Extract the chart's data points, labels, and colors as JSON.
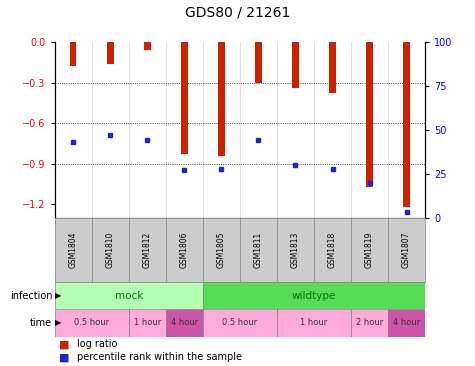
{
  "title": "GDS80 / 21261",
  "samples": [
    "GSM1804",
    "GSM1810",
    "GSM1812",
    "GSM1806",
    "GSM1805",
    "GSM1811",
    "GSM1813",
    "GSM1818",
    "GSM1819",
    "GSM1807"
  ],
  "log_ratios": [
    -0.18,
    -0.16,
    -0.06,
    -0.83,
    -0.84,
    -0.3,
    -0.34,
    -0.38,
    -1.07,
    -1.22
  ],
  "percentile_ranks": [
    43,
    47,
    44,
    27,
    28,
    44,
    30,
    28,
    20,
    3
  ],
  "ylim_min": -1.3,
  "ylim_max": 0.0,
  "yticks_left": [
    0,
    -0.3,
    -0.6,
    -0.9,
    -1.2
  ],
  "yticks_right": [
    0,
    25,
    50,
    75,
    100
  ],
  "infection_groups": [
    {
      "label": "mock",
      "start": 0,
      "end": 4,
      "color": "#b3ffb3"
    },
    {
      "label": "wildtype",
      "start": 4,
      "end": 10,
      "color": "#55dd55"
    }
  ],
  "time_groups": [
    {
      "label": "0.5 hour",
      "start": 0,
      "end": 2,
      "color": "#ffaadd"
    },
    {
      "label": "1 hour",
      "start": 2,
      "end": 3,
      "color": "#ffaadd"
    },
    {
      "label": "4 hour",
      "start": 3,
      "end": 4,
      "color": "#cc55aa"
    },
    {
      "label": "0.5 hour",
      "start": 4,
      "end": 6,
      "color": "#ffaadd"
    },
    {
      "label": "1 hour",
      "start": 6,
      "end": 8,
      "color": "#ffaadd"
    },
    {
      "label": "2 hour",
      "start": 8,
      "end": 9,
      "color": "#ffaadd"
    },
    {
      "label": "4 hour",
      "start": 9,
      "end": 10,
      "color": "#cc55aa"
    }
  ],
  "bar_color": "#cc2200",
  "dot_color": "#2222cc",
  "title_fontsize": 10,
  "tick_fontsize": 7,
  "sample_fontsize": 5.5,
  "row_label_fontsize": 7,
  "legend_fontsize": 7,
  "inf_text_color": "#007700",
  "time_text_color": "#333333"
}
